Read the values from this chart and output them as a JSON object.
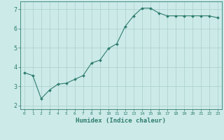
{
  "x": [
    0,
    1,
    2,
    3,
    4,
    5,
    6,
    7,
    8,
    9,
    10,
    11,
    12,
    13,
    14,
    15,
    16,
    17,
    18,
    19,
    20,
    21,
    22,
    23
  ],
  "y": [
    3.7,
    3.55,
    2.35,
    2.8,
    3.1,
    3.15,
    3.35,
    3.55,
    4.2,
    4.35,
    4.95,
    5.2,
    6.1,
    6.65,
    7.05,
    7.05,
    6.8,
    6.65,
    6.65,
    6.65,
    6.65,
    6.65,
    6.65,
    6.55
  ],
  "line_color": "#2e7d6e",
  "marker": "D",
  "marker_size": 2.0,
  "bg_color": "#cceae8",
  "grid_color": "#aacfcc",
  "tick_color": "#2e7d6e",
  "xlabel": "Humidex (Indice chaleur)",
  "xlabel_fontsize": 6.5,
  "xlabel_color": "#2e7d6e",
  "ylabel_ticks": [
    2,
    3,
    4,
    5,
    6,
    7
  ],
  "xlim": [
    -0.5,
    23.5
  ],
  "ylim": [
    1.8,
    7.4
  ],
  "xtick_fontsize": 4.5,
  "ytick_fontsize": 6.0
}
